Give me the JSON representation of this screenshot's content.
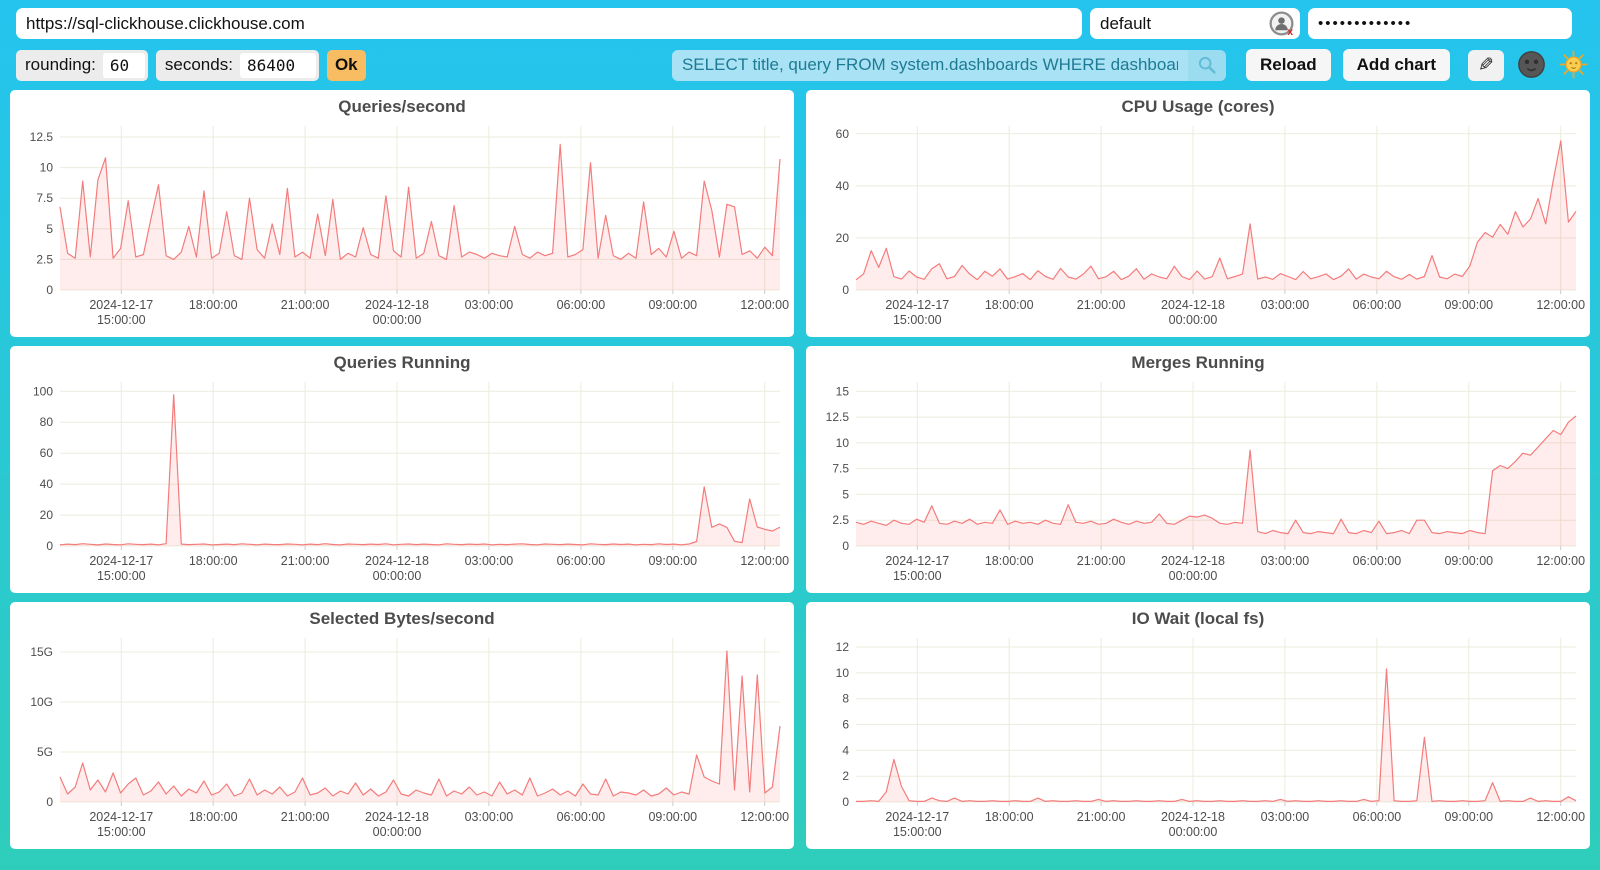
{
  "connection": {
    "url": "https://sql-clickhouse.clickhouse.com",
    "user": "default",
    "password_masked": "•••••••••••••"
  },
  "controls": {
    "rounding_label": "rounding:",
    "rounding_value": "60",
    "seconds_label": "seconds:",
    "seconds_value": "86400",
    "ok_label": "Ok",
    "query_value": "SELECT title, query FROM system.dashboards WHERE dashboard = '",
    "reload_label": "Reload",
    "add_chart_label": "Add chart",
    "edit_icon": "✎"
  },
  "colors": {
    "background_top": "#24c4ef",
    "background_bottom": "#2ecdbb",
    "panel": "#ffffff",
    "line": "#f47c7c",
    "area": "rgba(255,0,0,0.07)",
    "grid": "#ecebdd",
    "tick": "#cccccc",
    "axis_text": "#4d4d4d",
    "ok_button": "#f8bd62",
    "query_bg": "#a9e2f4",
    "query_text": "#1d7b93"
  },
  "chart_data": {
    "type": "line",
    "x_axis": {
      "start_hour": 13.0,
      "end_hour": 36.5,
      "start_label": "2024-12-17 13:00",
      "end_label": "2024-12-18 12:30",
      "ticks": [
        {
          "h": 15,
          "line1": "2024-12-17",
          "line2": "15:00:00"
        },
        {
          "h": 18,
          "line1": "18:00:00"
        },
        {
          "h": 21,
          "line1": "21:00:00"
        },
        {
          "h": 24,
          "line1": "2024-12-18",
          "line2": "00:00:00"
        },
        {
          "h": 27,
          "line1": "03:00:00"
        },
        {
          "h": 30,
          "line1": "06:00:00"
        },
        {
          "h": 33,
          "line1": "09:00:00"
        },
        {
          "h": 36,
          "line1": "12:00:00"
        }
      ]
    },
    "charts": [
      {
        "title": "Queries/second",
        "ylim": [
          0,
          13.4
        ],
        "y_ticks": [
          0,
          2.5,
          5,
          7.5,
          10,
          12.5
        ],
        "y_tick_labels": [
          "0",
          "2.5",
          "5",
          "7.5",
          "10",
          "12.5"
        ],
        "values": [
          6.8,
          3.0,
          2.6,
          8.9,
          2.7,
          9.0,
          10.8,
          2.6,
          3.4,
          7.3,
          2.7,
          2.9,
          5.8,
          8.6,
          2.8,
          2.5,
          3.1,
          5.2,
          2.7,
          8.1,
          2.6,
          3.0,
          6.4,
          2.8,
          2.5,
          7.5,
          3.3,
          2.6,
          5.4,
          2.9,
          8.3,
          2.7,
          3.1,
          2.6,
          6.2,
          2.8,
          7.4,
          2.5,
          3.0,
          2.7,
          5.1,
          2.9,
          2.6,
          7.7,
          3.2,
          2.7,
          8.4,
          2.6,
          3.0,
          5.6,
          2.8,
          2.5,
          6.9,
          2.7,
          3.1,
          2.9,
          2.6,
          3.0,
          2.8,
          2.7,
          5.2,
          2.9,
          2.6,
          3.1,
          2.8,
          3.0,
          11.9,
          2.7,
          2.9,
          3.3,
          10.4,
          2.6,
          6.1,
          2.8,
          2.5,
          3.0,
          2.6,
          7.2,
          2.9,
          3.4,
          2.7,
          4.8,
          2.6,
          3.1,
          2.8,
          8.9,
          6.5,
          2.7,
          7.0,
          6.8,
          2.9,
          3.2,
          2.6,
          3.5,
          2.8,
          10.7
        ]
      },
      {
        "title": "CPU Usage (cores)",
        "ylim": [
          0,
          63
        ],
        "y_ticks": [
          0,
          20,
          40,
          60
        ],
        "y_tick_labels": [
          "0",
          "20",
          "40",
          "60"
        ],
        "values": [
          3.9,
          6.2,
          15.1,
          8.7,
          16.0,
          5.1,
          4.2,
          7.3,
          5.0,
          4.1,
          8.2,
          10.1,
          4.3,
          5.2,
          9.4,
          6.1,
          4.0,
          7.2,
          5.3,
          8.1,
          4.2,
          5.1,
          6.3,
          4.0,
          7.4,
          5.2,
          4.1,
          8.3,
          5.0,
          4.2,
          6.1,
          9.2,
          4.3,
          5.1,
          7.2,
          4.0,
          5.3,
          8.2,
          4.1,
          6.2,
          5.0,
          4.3,
          9.1,
          5.2,
          4.0,
          7.3,
          4.2,
          5.1,
          12.3,
          4.3,
          5.2,
          6.1,
          25.4,
          4.2,
          5.0,
          4.1,
          6.3,
          5.2,
          4.0,
          7.1,
          4.3,
          5.1,
          6.2,
          4.0,
          5.3,
          8.1,
          4.2,
          6.1,
          5.0,
          4.3,
          7.2,
          5.1,
          4.1,
          6.0,
          4.2,
          5.2,
          13.2,
          5.0,
          4.3,
          6.1,
          5.2,
          9.3,
          18.4,
          22.1,
          20.3,
          25.2,
          21.4,
          30.1,
          24.2,
          27.3,
          35.1,
          25.4,
          42.2,
          57.3,
          26.1,
          30.2
        ]
      },
      {
        "title": "Queries Running",
        "ylim": [
          0,
          106
        ],
        "y_ticks": [
          0,
          20,
          40,
          60,
          80,
          100
        ],
        "y_tick_labels": [
          "0",
          "20",
          "40",
          "60",
          "80",
          "100"
        ],
        "values": [
          0.8,
          1.2,
          0.9,
          1.5,
          1.1,
          0.7,
          1.3,
          1.0,
          0.8,
          1.4,
          1.1,
          0.9,
          1.2,
          0.8,
          1.5,
          97.8,
          1.2,
          0.9,
          1.1,
          1.3,
          0.8,
          1.0,
          1.2,
          0.9,
          1.4,
          1.1,
          0.8,
          1.2,
          1.0,
          0.9,
          1.3,
          1.1,
          0.8,
          1.2,
          0.9,
          1.5,
          1.0,
          0.8,
          1.3,
          1.1,
          0.9,
          1.2,
          1.0,
          1.4,
          0.8,
          1.1,
          1.3,
          0.9,
          1.2,
          1.0,
          0.8,
          1.4,
          1.1,
          0.9,
          1.2,
          1.0,
          1.3,
          0.8,
          1.1,
          0.9,
          1.2,
          1.4,
          1.0,
          0.8,
          1.3,
          1.1,
          0.9,
          1.2,
          1.0,
          0.8,
          1.4,
          1.1,
          0.9,
          1.3,
          1.0,
          1.2,
          0.8,
          1.1,
          0.9,
          1.4,
          1.0,
          1.2,
          0.8,
          1.3,
          2.9,
          38.2,
          12.1,
          14.3,
          12.0,
          3.1,
          2.2,
          30.4,
          12.3,
          10.8,
          9.7,
          12.2
        ]
      },
      {
        "title": "Merges Running",
        "ylim": [
          0,
          15.9
        ],
        "y_ticks": [
          0,
          2.5,
          5,
          7.5,
          10,
          12.5,
          15
        ],
        "y_tick_labels": [
          "0",
          "2.5",
          "5",
          "7.5",
          "10",
          "12.5",
          "15"
        ],
        "values": [
          2.3,
          2.1,
          2.4,
          2.2,
          2.0,
          2.5,
          2.2,
          2.1,
          2.6,
          2.3,
          3.9,
          2.2,
          2.1,
          2.4,
          2.2,
          2.6,
          2.1,
          2.3,
          2.2,
          3.5,
          2.1,
          2.4,
          2.2,
          2.3,
          2.1,
          2.5,
          2.2,
          2.1,
          4.0,
          2.3,
          2.2,
          2.4,
          2.1,
          2.2,
          2.6,
          2.3,
          2.1,
          2.4,
          2.2,
          2.3,
          3.1,
          2.2,
          2.1,
          2.5,
          2.9,
          2.8,
          3.0,
          2.7,
          2.2,
          2.1,
          2.3,
          2.2,
          9.3,
          1.4,
          1.2,
          1.5,
          1.3,
          1.2,
          2.5,
          1.3,
          1.2,
          1.4,
          1.3,
          1.2,
          2.6,
          1.3,
          1.2,
          1.5,
          1.3,
          2.4,
          1.2,
          1.3,
          1.5,
          1.2,
          2.5,
          2.5,
          1.3,
          1.2,
          1.4,
          1.3,
          1.2,
          1.5,
          1.3,
          1.2,
          7.3,
          7.8,
          7.5,
          8.2,
          9.0,
          8.8,
          9.6,
          10.4,
          11.2,
          10.8,
          12.0,
          12.6
        ]
      },
      {
        "title": "Selected Bytes/second",
        "ylim": [
          0,
          16.4
        ],
        "y_ticks": [
          0,
          5,
          10,
          15
        ],
        "y_tick_labels": [
          "0",
          "5G",
          "10G",
          "15G"
        ],
        "unit": "GB/s",
        "values": [
          2.5,
          0.8,
          1.5,
          3.9,
          1.2,
          2.2,
          1.0,
          2.9,
          0.9,
          1.8,
          2.4,
          0.7,
          1.1,
          2.0,
          0.8,
          1.6,
          0.6,
          1.3,
          0.9,
          2.1,
          0.7,
          1.0,
          1.8,
          0.6,
          0.9,
          2.3,
          0.7,
          1.2,
          0.8,
          1.5,
          0.6,
          1.0,
          2.4,
          0.7,
          0.9,
          1.4,
          0.6,
          1.1,
          0.8,
          1.9,
          0.7,
          1.3,
          0.6,
          1.0,
          2.2,
          0.8,
          0.6,
          1.2,
          0.9,
          0.7,
          2.3,
          0.6,
          1.1,
          0.8,
          1.5,
          0.7,
          1.0,
          0.6,
          2.0,
          0.8,
          1.2,
          0.7,
          2.4,
          0.6,
          0.9,
          1.3,
          0.7,
          1.1,
          0.6,
          1.8,
          0.8,
          0.7,
          2.3,
          0.6,
          1.0,
          0.9,
          0.7,
          1.2,
          0.6,
          0.8,
          1.4,
          0.7,
          1.0,
          0.8,
          4.7,
          2.5,
          2.1,
          1.8,
          15.1,
          1.2,
          12.6,
          1.0,
          12.7,
          0.9,
          1.5,
          7.6
        ]
      },
      {
        "title": "IO Wait (local fs)",
        "ylim": [
          0,
          12.7
        ],
        "y_ticks": [
          0,
          2,
          4,
          6,
          8,
          10,
          12
        ],
        "y_tick_labels": [
          "0",
          "2",
          "4",
          "6",
          "8",
          "10",
          "12"
        ],
        "values": [
          0.05,
          0.05,
          0.1,
          0.05,
          0.8,
          3.3,
          1.2,
          0.1,
          0.05,
          0.05,
          0.3,
          0.1,
          0.05,
          0.3,
          0.05,
          0.1,
          0.05,
          0.05,
          0.1,
          0.05,
          0.05,
          0.1,
          0.05,
          0.05,
          0.3,
          0.05,
          0.1,
          0.05,
          0.05,
          0.1,
          0.05,
          0.05,
          0.2,
          0.05,
          0.1,
          0.05,
          0.05,
          0.1,
          0.05,
          0.05,
          0.1,
          0.05,
          0.05,
          0.2,
          0.05,
          0.1,
          0.05,
          0.05,
          0.1,
          0.05,
          0.05,
          0.1,
          0.05,
          0.05,
          0.1,
          0.05,
          0.2,
          0.05,
          0.1,
          0.05,
          0.05,
          0.1,
          0.05,
          0.05,
          0.1,
          0.05,
          0.05,
          0.2,
          0.05,
          0.1,
          10.3,
          0.1,
          0.05,
          0.05,
          0.1,
          5.0,
          0.05,
          0.1,
          0.05,
          0.05,
          0.1,
          0.05,
          0.05,
          0.1,
          1.5,
          0.05,
          0.1,
          0.05,
          0.05,
          0.3,
          0.05,
          0.1,
          0.05,
          0.05,
          0.4,
          0.1
        ]
      }
    ]
  }
}
